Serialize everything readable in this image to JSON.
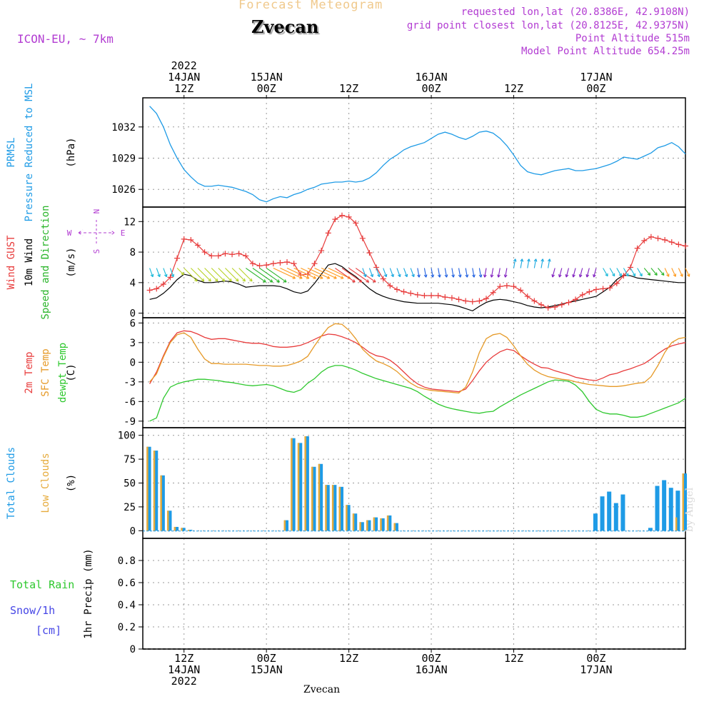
{
  "header": {
    "title": "Forecast Meteogram",
    "station": "Zvecan",
    "model": "ICON-EU, ~ 7km",
    "requested": "requested lon,lat (20.8386E, 42.9108N)",
    "gridpoint": "grid point closest lon,lat (20.8125E, 42.9375N)",
    "point_altitude": "Point Altitude 515m",
    "model_altitude": "Model Point Altitude 654.25m",
    "credit": "by Angel",
    "bottom_station": "Zvecan"
  },
  "time_axis": {
    "top_labels": [
      {
        "hour": 12,
        "lines": [
          "2022",
          "14JAN",
          "12Z"
        ]
      },
      {
        "hour": 24,
        "lines": [
          "15JAN",
          "00Z"
        ]
      },
      {
        "hour": 36,
        "lines": [
          "12Z"
        ]
      },
      {
        "hour": 48,
        "lines": [
          "16JAN",
          "00Z"
        ]
      },
      {
        "hour": 60,
        "lines": [
          "12Z"
        ]
      },
      {
        "hour": 72,
        "lines": [
          "17JAN",
          "00Z"
        ]
      }
    ],
    "bottom_labels": [
      {
        "hour": 12,
        "lines": [
          "12Z",
          "14JAN",
          "2022"
        ]
      },
      {
        "hour": 24,
        "lines": [
          "00Z",
          "15JAN"
        ]
      },
      {
        "hour": 36,
        "lines": [
          "12Z"
        ]
      },
      {
        "hour": 48,
        "lines": [
          "00Z",
          "16JAN"
        ]
      },
      {
        "hour": 60,
        "lines": [
          "12Z"
        ]
      },
      {
        "hour": 72,
        "lines": [
          "00Z",
          "17JAN"
        ]
      }
    ]
  },
  "chart_data": [
    {
      "id": "pressure",
      "type": "line",
      "ylabel": "(hPa)",
      "side_labels": [
        "PRMSL",
        "Pressure Reduced to MSL"
      ],
      "colors": {
        "line": "#1e9be6",
        "label": "#1e9be6"
      },
      "ylim": [
        1024.3,
        1034.8
      ],
      "yticks": [
        1026,
        1029,
        1032
      ],
      "x": [
        7,
        8,
        9,
        10,
        11,
        12,
        13,
        14,
        15,
        16,
        17,
        18,
        19,
        20,
        21,
        22,
        23,
        24,
        25,
        26,
        27,
        28,
        29,
        30,
        31,
        32,
        33,
        34,
        35,
        36,
        37,
        38,
        39,
        40,
        41,
        42,
        43,
        44,
        45,
        46,
        47,
        48,
        49,
        50,
        51,
        52,
        53,
        54,
        55,
        56,
        57,
        58,
        59,
        60,
        61,
        62,
        63,
        64,
        65,
        66,
        67,
        68,
        69,
        70,
        71,
        72,
        73,
        74,
        75,
        76,
        77,
        78,
        79,
        80,
        81,
        82,
        83,
        84,
        85
      ],
      "series": [
        {
          "values": [
            1034.0,
            1033.3,
            1032.0,
            1030.3,
            1029.0,
            1027.9,
            1027.2,
            1026.6,
            1026.3,
            1026.3,
            1026.4,
            1026.3,
            1026.2,
            1026.0,
            1025.8,
            1025.5,
            1025.0,
            1024.8,
            1025.1,
            1025.3,
            1025.2,
            1025.5,
            1025.7,
            1026.0,
            1026.2,
            1026.5,
            1026.6,
            1026.7,
            1026.7,
            1026.8,
            1026.7,
            1026.8,
            1027.1,
            1027.6,
            1028.3,
            1028.9,
            1029.3,
            1029.8,
            1030.1,
            1030.3,
            1030.5,
            1030.9,
            1031.3,
            1031.5,
            1031.3,
            1031.0,
            1030.8,
            1031.1,
            1031.5,
            1031.6,
            1031.4,
            1030.9,
            1030.2,
            1029.3,
            1028.3,
            1027.7,
            1027.5,
            1027.4,
            1027.6,
            1027.8,
            1027.9,
            1028.0,
            1027.8,
            1027.8,
            1027.9,
            1028.0,
            1028.2,
            1028.4,
            1028.7,
            1029.1,
            1029.0,
            1028.9,
            1029.2,
            1029.5,
            1030.0,
            1030.2,
            1030.5,
            1030.1,
            1029.4
          ]
        }
      ]
    },
    {
      "id": "wind",
      "type": "line",
      "ylabel": "(m/s)",
      "side_labels": [
        "Wind GUST",
        "10m Wind",
        "Speed and Direction"
      ],
      "compass": {
        "n": "N",
        "s": "S",
        "w": "W",
        "e": "E"
      },
      "colors": {
        "gust": "#e83c3c",
        "wind": "#000000",
        "compass": "#b23cd2",
        "speed_label": "#2ab52a"
      },
      "ylim": [
        -0.6,
        13.9
      ],
      "yticks": [
        0,
        4,
        8,
        12
      ],
      "x": [
        7,
        8,
        9,
        10,
        11,
        12,
        13,
        14,
        15,
        16,
        17,
        18,
        19,
        20,
        21,
        22,
        23,
        24,
        25,
        26,
        27,
        28,
        29,
        30,
        31,
        32,
        33,
        34,
        35,
        36,
        37,
        38,
        39,
        40,
        41,
        42,
        43,
        44,
        45,
        46,
        47,
        48,
        49,
        50,
        51,
        52,
        53,
        54,
        55,
        56,
        57,
        58,
        59,
        60,
        61,
        62,
        63,
        64,
        65,
        66,
        67,
        68,
        69,
        70,
        71,
        72,
        73,
        74,
        75,
        76,
        77,
        78,
        79,
        80,
        81,
        82,
        83,
        84,
        85
      ],
      "series": [
        {
          "key": "gust",
          "values": [
            3.0,
            3.2,
            3.8,
            4.7,
            7.2,
            9.7,
            9.6,
            8.9,
            8.0,
            7.5,
            7.5,
            7.8,
            7.7,
            7.8,
            7.5,
            6.5,
            6.2,
            6.3,
            6.5,
            6.6,
            6.7,
            6.5,
            5.0,
            5.1,
            6.5,
            8.2,
            10.5,
            12.3,
            12.8,
            12.6,
            11.8,
            9.8,
            7.9,
            6.0,
            4.5,
            3.6,
            3.1,
            2.8,
            2.6,
            2.4,
            2.3,
            2.3,
            2.3,
            2.1,
            2.0,
            1.8,
            1.6,
            1.5,
            1.6,
            1.9,
            2.7,
            3.5,
            3.6,
            3.5,
            3.0,
            2.2,
            1.6,
            1.1,
            0.7,
            0.8,
            1.1,
            1.4,
            1.8,
            2.4,
            2.8,
            3.1,
            3.2,
            3.3,
            3.9,
            4.9,
            6.0,
            8.5,
            9.5,
            10.0,
            9.8,
            9.6,
            9.3,
            9.0,
            8.8
          ]
        },
        {
          "key": "wind",
          "values": [
            1.8,
            2.0,
            2.6,
            3.4,
            4.4,
            5.1,
            4.9,
            4.3,
            4.0,
            4.0,
            4.1,
            4.2,
            4.1,
            3.8,
            3.4,
            3.5,
            3.6,
            3.6,
            3.6,
            3.5,
            3.2,
            2.8,
            2.6,
            2.9,
            3.9,
            5.1,
            6.3,
            6.5,
            6.1,
            5.4,
            4.8,
            4.0,
            3.2,
            2.6,
            2.2,
            1.9,
            1.7,
            1.5,
            1.4,
            1.3,
            1.3,
            1.3,
            1.3,
            1.2,
            1.1,
            0.9,
            0.6,
            0.3,
            0.9,
            1.4,
            1.7,
            1.8,
            1.7,
            1.5,
            1.3,
            1.0,
            0.8,
            0.7,
            0.8,
            1.0,
            1.2,
            1.4,
            1.6,
            1.8,
            2.0,
            2.2,
            2.8,
            3.4,
            4.4,
            5.0,
            4.9,
            4.6,
            4.5,
            4.4,
            4.3,
            4.2,
            4.1,
            4.0,
            4.0
          ]
        }
      ]
    },
    {
      "id": "temperature",
      "type": "line",
      "ylabel": "(C)",
      "side_labels": [
        "2m Temp",
        "SFC Temp",
        "dewpt Temp"
      ],
      "colors": {
        "temp2m": "#e83c3c",
        "sfc": "#e69a28",
        "dewpt": "#2ec82e"
      },
      "ylim": [
        -10.0,
        6.8
      ],
      "yticks": [
        -9,
        -6,
        -3,
        0,
        3,
        6
      ],
      "x": [
        7,
        8,
        9,
        10,
        11,
        12,
        13,
        14,
        15,
        16,
        17,
        18,
        19,
        20,
        21,
        22,
        23,
        24,
        25,
        26,
        27,
        28,
        29,
        30,
        31,
        32,
        33,
        34,
        35,
        36,
        37,
        38,
        39,
        40,
        41,
        42,
        43,
        44,
        45,
        46,
        47,
        48,
        49,
        50,
        51,
        52,
        53,
        54,
        55,
        56,
        57,
        58,
        59,
        60,
        61,
        62,
        63,
        64,
        65,
        66,
        67,
        68,
        69,
        70,
        71,
        72,
        73,
        74,
        75,
        76,
        77,
        78,
        79,
        80,
        81,
        82,
        83,
        84,
        85
      ],
      "series": [
        {
          "key": "temp2m",
          "values": [
            -3.3,
            -1.5,
            1.0,
            3.2,
            4.5,
            4.8,
            4.7,
            4.3,
            3.8,
            3.5,
            3.6,
            3.6,
            3.4,
            3.2,
            3.0,
            2.9,
            2.9,
            2.7,
            2.4,
            2.3,
            2.3,
            2.4,
            2.6,
            3.0,
            3.5,
            4.0,
            4.3,
            4.2,
            3.9,
            3.5,
            3.0,
            2.3,
            1.5,
            1.0,
            0.8,
            0.3,
            -0.5,
            -1.5,
            -2.5,
            -3.3,
            -3.8,
            -4.1,
            -4.2,
            -4.3,
            -4.4,
            -4.5,
            -4.1,
            -2.8,
            -1.3,
            0.0,
            0.9,
            1.6,
            2.0,
            1.8,
            1.0,
            0.3,
            -0.3,
            -0.8,
            -0.9,
            -1.3,
            -1.6,
            -1.9,
            -2.3,
            -2.5,
            -2.7,
            -2.8,
            -2.4,
            -1.9,
            -1.7,
            -1.3,
            -1.0,
            -0.6,
            -0.2,
            0.5,
            1.3,
            2.0,
            2.5,
            2.8,
            3.0
          ]
        },
        {
          "key": "sfc",
          "values": [
            -3.0,
            -1.8,
            0.8,
            3.0,
            4.2,
            4.5,
            3.8,
            2.0,
            0.5,
            -0.2,
            -0.2,
            -0.3,
            -0.3,
            -0.3,
            -0.3,
            -0.4,
            -0.5,
            -0.5,
            -0.6,
            -0.6,
            -0.5,
            -0.2,
            0.2,
            0.9,
            2.5,
            4.0,
            5.3,
            5.9,
            5.8,
            4.9,
            3.6,
            2.0,
            1.0,
            0.2,
            -0.2,
            -0.7,
            -1.4,
            -2.4,
            -3.2,
            -3.8,
            -4.1,
            -4.3,
            -4.4,
            -4.5,
            -4.6,
            -4.7,
            -3.8,
            -1.5,
            1.5,
            3.6,
            4.2,
            4.4,
            3.8,
            2.5,
            1.0,
            -0.3,
            -1.2,
            -1.8,
            -2.2,
            -2.4,
            -2.6,
            -2.7,
            -3.0,
            -3.2,
            -3.4,
            -3.5,
            -3.6,
            -3.7,
            -3.7,
            -3.6,
            -3.4,
            -3.2,
            -3.1,
            -2.2,
            -0.5,
            1.5,
            3.0,
            3.6,
            3.8
          ]
        },
        {
          "key": "dewpt",
          "values": [
            -9.0,
            -8.5,
            -5.5,
            -3.8,
            -3.3,
            -3.0,
            -2.8,
            -2.6,
            -2.6,
            -2.7,
            -2.8,
            -3.0,
            -3.1,
            -3.3,
            -3.5,
            -3.6,
            -3.5,
            -3.4,
            -3.6,
            -4.0,
            -4.4,
            -4.6,
            -4.2,
            -3.2,
            -2.5,
            -1.5,
            -0.8,
            -0.5,
            -0.5,
            -0.8,
            -1.2,
            -1.7,
            -2.1,
            -2.5,
            -2.8,
            -3.1,
            -3.4,
            -3.7,
            -4.0,
            -4.5,
            -5.2,
            -5.8,
            -6.4,
            -6.8,
            -7.1,
            -7.3,
            -7.5,
            -7.7,
            -7.8,
            -7.6,
            -7.5,
            -6.8,
            -6.2,
            -5.6,
            -5.0,
            -4.5,
            -4.0,
            -3.5,
            -3.0,
            -2.7,
            -2.8,
            -2.9,
            -3.5,
            -4.5,
            -6.0,
            -7.2,
            -7.7,
            -7.9,
            -7.9,
            -8.1,
            -8.4,
            -8.4,
            -8.2,
            -7.8,
            -7.4,
            -7.0,
            -6.6,
            -6.2,
            -5.5
          ]
        }
      ]
    },
    {
      "id": "clouds",
      "type": "bar",
      "ylabel": "(%)",
      "side_labels": [
        "Total Clouds",
        "Low Clouds"
      ],
      "colors": {
        "total": "#1e9be6",
        "low": "#e6ab3c"
      },
      "ylim": [
        -8,
        108
      ],
      "yticks": [
        0,
        25,
        50,
        75,
        100
      ],
      "x": [
        7,
        8,
        9,
        10,
        11,
        12,
        13,
        14,
        15,
        16,
        17,
        18,
        19,
        20,
        21,
        22,
        23,
        24,
        25,
        26,
        27,
        28,
        29,
        30,
        31,
        32,
        33,
        34,
        35,
        36,
        37,
        38,
        39,
        40,
        41,
        42,
        43,
        44,
        45,
        46,
        47,
        48,
        49,
        50,
        51,
        52,
        53,
        54,
        55,
        56,
        57,
        58,
        59,
        60,
        61,
        62,
        63,
        64,
        65,
        66,
        67,
        68,
        69,
        70,
        71,
        72,
        73,
        74,
        75,
        76,
        77,
        78,
        79,
        80,
        81,
        82,
        83,
        84,
        85
      ],
      "series": [
        {
          "key": "total",
          "values": [
            88,
            84,
            58,
            21,
            4,
            3,
            1,
            0,
            0,
            0,
            0,
            0,
            0,
            0,
            0,
            0,
            0,
            0,
            0,
            0,
            11,
            97,
            92,
            99,
            67,
            70,
            48,
            48,
            46,
            27,
            18,
            9,
            11,
            14,
            13,
            16,
            8,
            0,
            0,
            0,
            0,
            0,
            0,
            0,
            0,
            0,
            0,
            0,
            0,
            0,
            0,
            0,
            0,
            0,
            0,
            0,
            0,
            0,
            0,
            0,
            0,
            0,
            0,
            0,
            0,
            18,
            36,
            41,
            29,
            38,
            0,
            0,
            0,
            3,
            47,
            53,
            45,
            42,
            60
          ]
        },
        {
          "key": "low",
          "values": [
            88,
            84,
            58,
            21,
            4,
            3,
            1,
            0,
            0,
            0,
            0,
            0,
            0,
            0,
            0,
            0,
            0,
            0,
            0,
            0,
            11,
            97,
            92,
            99,
            67,
            70,
            48,
            48,
            46,
            27,
            18,
            9,
            11,
            14,
            13,
            16,
            8,
            0,
            0,
            0,
            0,
            0,
            0,
            0,
            0,
            0,
            0,
            0,
            0,
            0,
            0,
            0,
            0,
            0,
            0,
            0,
            0,
            0,
            0,
            0,
            0,
            0,
            0,
            0,
            0,
            0,
            0,
            0,
            0,
            0,
            0,
            0,
            0,
            0,
            0,
            0,
            0,
            14,
            60
          ]
        }
      ]
    },
    {
      "id": "precip",
      "type": "bar",
      "ylabel": "1hr Precip (mm)",
      "side_labels": [
        "Total Rain",
        "Snow/1h",
        "[cm]"
      ],
      "colors": {
        "rain": "#2ec82e",
        "snow": "#4646e6"
      },
      "ylim": [
        0,
        1.0
      ],
      "yticks": [
        0,
        0.2,
        0.4,
        0.6,
        0.8
      ],
      "ytick_labels": [
        "0",
        "0.2",
        "0.4",
        "0.6",
        "0.8"
      ],
      "series": [
        {
          "key": "rain",
          "values": []
        },
        {
          "key": "snow",
          "values": []
        }
      ]
    }
  ]
}
